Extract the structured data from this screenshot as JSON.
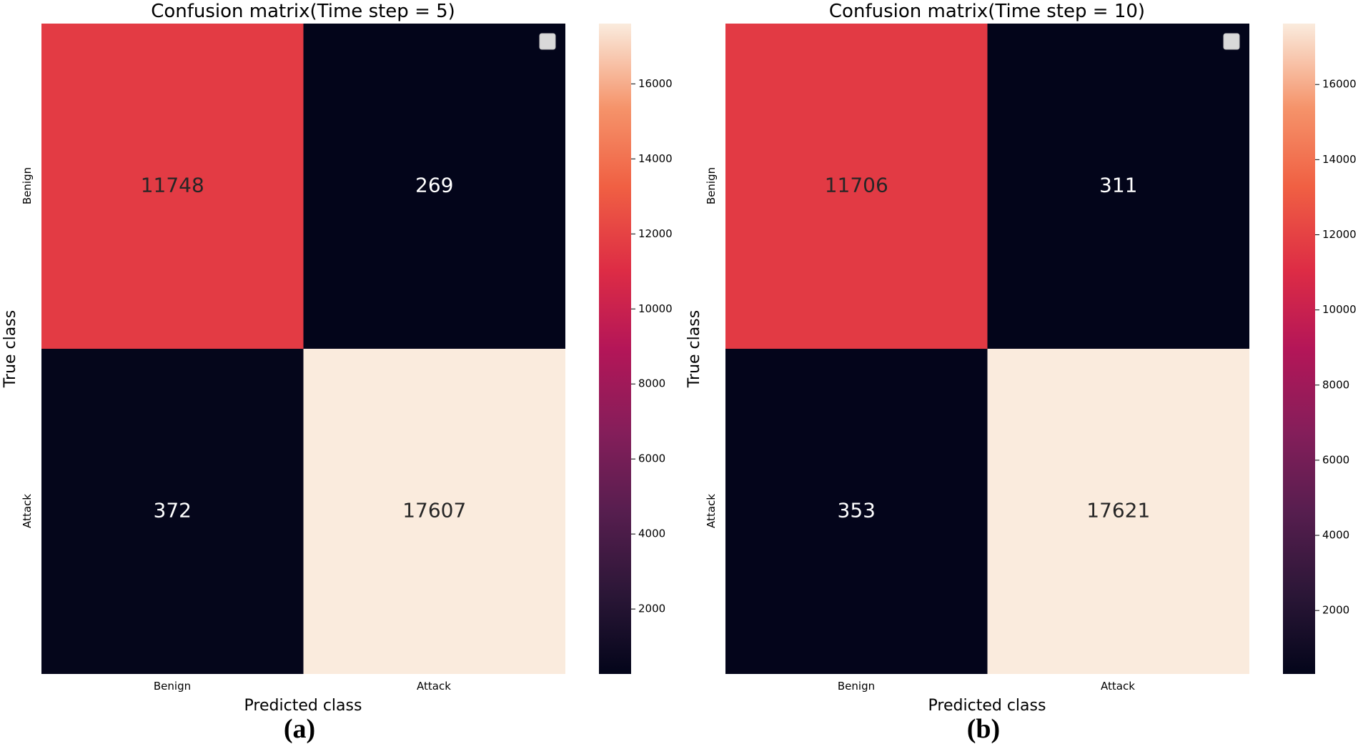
{
  "chart_data": [
    {
      "type": "heatmap",
      "title": "Confusion matrix(Time step = 5)",
      "xlabel": "Predicted class",
      "ylabel": "True class",
      "x_categories": [
        "Benign",
        "Attack"
      ],
      "y_categories": [
        "Benign",
        "Attack"
      ],
      "values": [
        [
          11748,
          269
        ],
        [
          372,
          17607
        ]
      ],
      "colorbar": {
        "vmin": 269,
        "vmax": 17607,
        "ticks": [
          2000,
          4000,
          6000,
          8000,
          10000,
          12000,
          14000,
          16000
        ]
      },
      "legend": "top-right",
      "subfigure_label": "(a)"
    },
    {
      "type": "heatmap",
      "title": "Confusion matrix(Time step = 10)",
      "xlabel": "Predicted class",
      "ylabel": "True class",
      "x_categories": [
        "Benign",
        "Attack"
      ],
      "y_categories": [
        "Benign",
        "Attack"
      ],
      "values": [
        [
          11706,
          311
        ],
        [
          353,
          17621
        ]
      ],
      "colorbar": {
        "vmin": 311,
        "vmax": 17621,
        "ticks": [
          2000,
          4000,
          6000,
          8000,
          10000,
          12000,
          14000,
          16000
        ]
      },
      "legend": "top-right",
      "subfigure_label": "(b)"
    }
  ]
}
